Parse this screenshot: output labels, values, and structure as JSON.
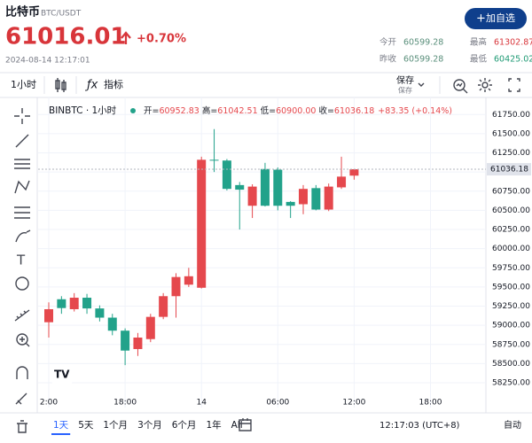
{
  "header": {
    "name": "比特币",
    "pair": "BTC/USDT",
    "price": "61016.01",
    "change": "+0.70%",
    "datetime": "2024-08-14 12:17:01",
    "button": "加自选",
    "stats": [
      {
        "label": "今开",
        "value": "60599.28",
        "color": "#5a8f7b"
      },
      {
        "label": "最高",
        "value": "61302.87",
        "color": "#d8353a"
      },
      {
        "label": "昨收",
        "value": "60599.28",
        "color": "#5a8f7b"
      },
      {
        "label": "最低",
        "value": "60425.02",
        "color": "#1f9a74"
      }
    ]
  },
  "toolbar": {
    "interval": "1小时",
    "indicators": "指标",
    "save": "保存",
    "save_sub": "保存"
  },
  "legend": {
    "symbol": "BINBTC · 1小时",
    "items": [
      {
        "label": "开=",
        "value": "60952.83"
      },
      {
        "label": "高=",
        "value": "61042.51"
      },
      {
        "label": "低=",
        "value": "60900.00"
      },
      {
        "label": "收=",
        "value": "61036.18"
      }
    ],
    "change": "+83.35 (+0.14%)"
  },
  "bottom_bar": {
    "ranges": [
      "1天",
      "5天",
      "1个月",
      "3个月",
      "6个月",
      "1年",
      "All"
    ],
    "time": "12:17:03 (UTC+8)",
    "scale": "自动"
  },
  "chart_data": {
    "type": "candlestick",
    "up_color": "#e5484d",
    "down_color": "#22a28a",
    "grid": true,
    "categories": [
      "2:00",
      null,
      null,
      null,
      null,
      null,
      "18:00",
      null,
      null,
      null,
      null,
      null,
      "14",
      null,
      null,
      null,
      null,
      null,
      "06:00",
      null,
      null,
      null,
      null,
      null,
      "12:00",
      null,
      null,
      null,
      null,
      null,
      "18:00"
    ],
    "open": [
      59040,
      59340,
      59210,
      59360,
      59220,
      59100,
      58930,
      58690,
      58820,
      59110,
      59380,
      59530,
      59490,
      61160,
      61150,
      60830,
      60560,
      61040,
      61030,
      60610,
      60580,
      60790,
      60510,
      60800,
      60952.83,
      null,
      null,
      null,
      null,
      null,
      null
    ],
    "high": [
      59300,
      59380,
      59420,
      59410,
      59260,
      59150,
      58960,
      58900,
      59150,
      59420,
      59680,
      59750,
      61200,
      61560,
      61170,
      60870,
      60840,
      61120,
      61060,
      60620,
      60830,
      60830,
      60850,
      61200,
      61042.51,
      null,
      null,
      null,
      null,
      null,
      null
    ],
    "low": [
      58840,
      59150,
      59180,
      59150,
      59050,
      58870,
      58480,
      58600,
      58780,
      59080,
      59100,
      59500,
      59480,
      61000,
      60760,
      60250,
      60400,
      60550,
      60500,
      60400,
      60450,
      60500,
      60490,
      60780,
      60900,
      null,
      null,
      null,
      null,
      null,
      null
    ],
    "close": [
      59210,
      59225,
      59360,
      59220,
      59100,
      58930,
      58670,
      58840,
      59110,
      59380,
      59630,
      59640,
      61160,
      61150,
      60780,
      60770,
      60810,
      60560,
      60560,
      60560,
      60780,
      60510,
      60810,
      60940,
      61036.18,
      null,
      null,
      null,
      null,
      null,
      null
    ],
    "ylim": [
      58100,
      61950
    ],
    "yticks": [
      {
        "value": 58250,
        "label": "58250.00"
      },
      {
        "value": 58500,
        "label": "58500.00"
      },
      {
        "value": 58750,
        "label": "58750.00"
      },
      {
        "value": 59000,
        "label": "59000.00"
      },
      {
        "value": 59250,
        "label": "59250.00"
      },
      {
        "value": 59500,
        "label": "59500.00"
      },
      {
        "value": 59750,
        "label": "59750.00"
      },
      {
        "value": 60000,
        "label": "60000.00"
      },
      {
        "value": 60250,
        "label": "60250.00"
      },
      {
        "value": 60500,
        "label": "60500.00"
      },
      {
        "value": 60750,
        "label": "60750.00"
      },
      {
        "value": 61000,
        "label": "61000.00"
      },
      {
        "value": 61250,
        "label": "61250.00"
      },
      {
        "value": 61500,
        "label": "61500.00"
      },
      {
        "value": 61750,
        "label": "61750.00"
      }
    ]
  }
}
